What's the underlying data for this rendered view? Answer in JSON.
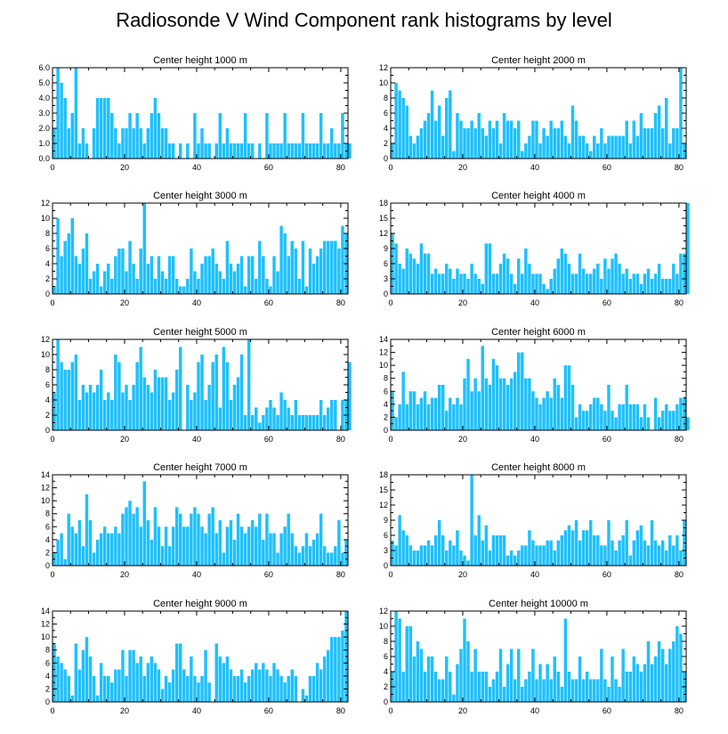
{
  "title": "Radiosonde V Wind Component rank histograms by level",
  "colors": {
    "bar": "#1ec0ff",
    "axis": "#000000",
    "background": "#ffffff"
  },
  "chart_data": [
    {
      "type": "bar",
      "title": "Center height 1000 m",
      "xlim": [
        0,
        82
      ],
      "ylim": [
        0,
        6
      ],
      "xticks": [
        0,
        20,
        40,
        60,
        80
      ],
      "yticks": [
        0,
        1,
        2,
        3,
        4,
        5,
        6
      ],
      "ytick_labels": [
        "0.0",
        "1.0",
        "2.0",
        "3.0",
        "4.0",
        "5.0",
        "6.0"
      ],
      "values": [
        2,
        6,
        5,
        4,
        2,
        3,
        6,
        1,
        2,
        1,
        0,
        2,
        4,
        4,
        4,
        4,
        3,
        2,
        1,
        2,
        2,
        3,
        2,
        3,
        2,
        1,
        2,
        3,
        4,
        3,
        2,
        2,
        1,
        1,
        0,
        1,
        0,
        1,
        0,
        3,
        1,
        2,
        1,
        1,
        0,
        1,
        3,
        1,
        2,
        1,
        1,
        1,
        1,
        3,
        1,
        1,
        0,
        1,
        0,
        3,
        1,
        1,
        1,
        1,
        3,
        1,
        1,
        1,
        1,
        3,
        1,
        1,
        1,
        1,
        3,
        1,
        1,
        2,
        1,
        1,
        3,
        1,
        1
      ]
    },
    {
      "type": "bar",
      "title": "Center height 2000 m",
      "xlim": [
        0,
        82
      ],
      "ylim": [
        0,
        12
      ],
      "xticks": [
        0,
        20,
        40,
        60,
        80
      ],
      "yticks": [
        0,
        2,
        4,
        6,
        8,
        10,
        12
      ],
      "ytick_labels": [
        "0",
        "2",
        "4",
        "6",
        "8",
        "10",
        "12"
      ],
      "values": [
        2,
        10,
        9,
        8,
        7,
        3,
        2,
        3,
        4,
        5,
        6,
        9,
        5,
        7,
        3,
        8,
        9,
        1,
        6,
        5,
        4,
        4,
        5,
        4,
        6,
        4,
        3,
        5,
        4,
        5,
        2,
        6,
        5,
        5,
        4,
        5,
        1,
        2,
        3,
        5,
        5,
        2,
        4,
        3,
        5,
        4,
        4,
        5,
        3,
        2,
        7,
        5,
        3,
        3,
        2,
        1,
        3,
        2,
        4,
        2,
        3,
        3,
        3,
        3,
        3,
        5,
        2,
        5,
        3,
        6,
        4,
        4,
        4,
        6,
        7,
        4,
        8,
        2,
        4,
        4,
        12,
        2
      ]
    },
    {
      "type": "bar",
      "title": "Center height 3000 m",
      "xlim": [
        0,
        82
      ],
      "ylim": [
        0,
        12
      ],
      "xticks": [
        0,
        20,
        40,
        60,
        80
      ],
      "yticks": [
        0,
        2,
        4,
        6,
        8,
        10,
        12
      ],
      "ytick_labels": [
        "0",
        "2",
        "4",
        "6",
        "8",
        "10",
        "12"
      ],
      "values": [
        1,
        10,
        5,
        7,
        8,
        10,
        5,
        4,
        6,
        8,
        2,
        3,
        4,
        1,
        3,
        4,
        2,
        5,
        6,
        6,
        3,
        7,
        4,
        2,
        6,
        12,
        4,
        5,
        2,
        5,
        3,
        2,
        5,
        5,
        2,
        1,
        1,
        2,
        6,
        3,
        2,
        4,
        5,
        5,
        6,
        4,
        3,
        2,
        7,
        4,
        3,
        4,
        5,
        1,
        5,
        5,
        2,
        7,
        5,
        2,
        1,
        5,
        3,
        9,
        8,
        5,
        7,
        6,
        2,
        7,
        1,
        6,
        4,
        5,
        6,
        7,
        7,
        7,
        7,
        6,
        9,
        8
      ]
    },
    {
      "type": "bar",
      "title": "Center height 4000 m",
      "xlim": [
        0,
        82
      ],
      "ylim": [
        0,
        18
      ],
      "xticks": [
        0,
        20,
        40,
        60,
        80
      ],
      "yticks": [
        0,
        3,
        6,
        9,
        12,
        15,
        18
      ],
      "ytick_labels": [
        "0",
        "3",
        "6",
        "9",
        "12",
        "15",
        "18"
      ],
      "values": [
        12,
        10,
        6,
        5,
        9,
        8,
        7,
        6,
        10,
        8,
        8,
        4,
        5,
        4,
        4,
        6,
        5,
        3,
        5,
        4,
        4,
        3,
        6,
        4,
        3,
        2,
        10,
        10,
        4,
        4,
        6,
        8,
        7,
        4,
        2,
        7,
        4,
        9,
        6,
        4,
        4,
        4,
        2,
        1,
        3,
        5,
        7,
        9,
        8,
        6,
        4,
        4,
        8,
        5,
        4,
        4,
        5,
        6,
        3,
        7,
        5,
        7,
        8,
        6,
        4,
        5,
        3,
        4,
        4,
        2,
        4,
        5,
        3,
        4,
        6,
        3,
        3,
        3,
        6,
        4,
        8,
        8,
        18
      ]
    },
    {
      "type": "bar",
      "title": "Center height 5000 m",
      "xlim": [
        0,
        82
      ],
      "ylim": [
        0,
        12
      ],
      "xticks": [
        0,
        20,
        40,
        60,
        80
      ],
      "yticks": [
        0,
        2,
        4,
        6,
        8,
        10,
        12
      ],
      "ytick_labels": [
        "0",
        "2",
        "4",
        "6",
        "8",
        "10",
        "12"
      ],
      "values": [
        5,
        12,
        9,
        8,
        8,
        9,
        10,
        4,
        6,
        5,
        6,
        5,
        6,
        8,
        4,
        5,
        4,
        10,
        9,
        5,
        6,
        4,
        6,
        9,
        11,
        7,
        6,
        5,
        8,
        7,
        7,
        7,
        4,
        5,
        8,
        11,
        0,
        6,
        4,
        5,
        9,
        10,
        4,
        6,
        9,
        10,
        3,
        11,
        9,
        4,
        6,
        7,
        10,
        2,
        12,
        2,
        3,
        1,
        2,
        3,
        4,
        3,
        2,
        5,
        4,
        3,
        2,
        4,
        2,
        2,
        2,
        2,
        2,
        2,
        4,
        2,
        3,
        4,
        4,
        0,
        4,
        4,
        9
      ]
    },
    {
      "type": "bar",
      "title": "Center height 6000 m",
      "xlim": [
        0,
        82
      ],
      "ylim": [
        0,
        14
      ],
      "xticks": [
        0,
        20,
        40,
        60,
        80
      ],
      "yticks": [
        0,
        2,
        4,
        6,
        8,
        10,
        12,
        14
      ],
      "ytick_labels": [
        "0",
        "2",
        "4",
        "6",
        "8",
        "10",
        "12",
        "14"
      ],
      "values": [
        6,
        2,
        4,
        9,
        4,
        6,
        6,
        4,
        5,
        6,
        4,
        5,
        5,
        7,
        7,
        3,
        5,
        4,
        5,
        4,
        8,
        11,
        6,
        8,
        6,
        13,
        8,
        7,
        11,
        10,
        8,
        8,
        7,
        8,
        9,
        12,
        12,
        8,
        8,
        6,
        5,
        4,
        5,
        6,
        5,
        8,
        7,
        5,
        10,
        10,
        7,
        2,
        4,
        3,
        3,
        4,
        5,
        5,
        4,
        3,
        7,
        3,
        2,
        4,
        4,
        7,
        4,
        4,
        4,
        2,
        4,
        2,
        0,
        5,
        2,
        3,
        4,
        3,
        3,
        4,
        5,
        5,
        2
      ]
    },
    {
      "type": "bar",
      "title": "Center height 7000 m",
      "xlim": [
        0,
        82
      ],
      "ylim": [
        0,
        14
      ],
      "xticks": [
        0,
        20,
        40,
        60,
        80
      ],
      "yticks": [
        0,
        2,
        4,
        6,
        8,
        10,
        12,
        14
      ],
      "ytick_labels": [
        "0",
        "2",
        "4",
        "6",
        "8",
        "10",
        "12",
        "14"
      ],
      "values": [
        2,
        4,
        5,
        1,
        8,
        6,
        5,
        7,
        3,
        11,
        7,
        2,
        4,
        5,
        6,
        5,
        5,
        6,
        5,
        8,
        9,
        10,
        8,
        9,
        6,
        13,
        7,
        4,
        9,
        6,
        3,
        6,
        3,
        6,
        9,
        8,
        6,
        6,
        8,
        9,
        8,
        6,
        5,
        8,
        9,
        5,
        7,
        2,
        6,
        7,
        4,
        8,
        6,
        5,
        6,
        7,
        6,
        8,
        4,
        8,
        5,
        5,
        2,
        5,
        6,
        8,
        5,
        3,
        2,
        3,
        5,
        3,
        4,
        5,
        8,
        3,
        2,
        2,
        3,
        7,
        2,
        4
      ]
    },
    {
      "type": "bar",
      "title": "Center height 8000 m",
      "xlim": [
        0,
        82
      ],
      "ylim": [
        0,
        18
      ],
      "xticks": [
        0,
        20,
        40,
        60,
        80
      ],
      "yticks": [
        0,
        3,
        6,
        9,
        12,
        15,
        18
      ],
      "ytick_labels": [
        "0",
        "3",
        "6",
        "9",
        "12",
        "15",
        "18"
      ],
      "values": [
        5,
        4,
        10,
        7,
        6,
        4,
        3,
        3,
        4,
        4,
        5,
        4,
        6,
        9,
        6,
        3,
        5,
        4,
        7,
        3,
        2,
        1,
        18,
        6,
        10,
        5,
        8,
        3,
        6,
        6,
        6,
        6,
        2,
        3,
        2,
        3,
        4,
        4,
        7,
        5,
        4,
        4,
        4,
        5,
        5,
        3,
        5,
        6,
        7,
        8,
        7,
        9,
        5,
        7,
        7,
        9,
        6,
        6,
        4,
        4,
        9,
        5,
        3,
        5,
        6,
        9,
        2,
        5,
        7,
        8,
        5,
        4,
        9,
        5,
        4,
        5,
        3,
        6,
        4,
        6,
        3,
        9
      ]
    },
    {
      "type": "bar",
      "title": "Center height 9000 m",
      "xlim": [
        0,
        82
      ],
      "ylim": [
        0,
        14
      ],
      "xticks": [
        0,
        20,
        40,
        60,
        80
      ],
      "yticks": [
        0,
        2,
        4,
        6,
        8,
        10,
        12,
        14
      ],
      "ytick_labels": [
        "0",
        "2",
        "4",
        "6",
        "8",
        "10",
        "12",
        "14"
      ],
      "values": [
        9,
        7,
        6,
        5,
        4,
        1,
        9,
        5,
        8,
        10,
        7,
        4,
        1,
        6,
        4,
        4,
        3,
        5,
        5,
        8,
        4,
        8,
        8,
        6,
        7,
        4,
        6,
        7,
        6,
        5,
        2,
        4,
        3,
        5,
        9,
        9,
        5,
        4,
        7,
        4,
        3,
        4,
        8,
        3,
        0,
        9,
        7,
        6,
        7,
        5,
        4,
        4,
        5,
        3,
        4,
        5,
        6,
        5,
        6,
        5,
        4,
        6,
        5,
        4,
        3,
        4,
        5,
        4,
        0,
        2,
        1,
        4,
        4,
        6,
        5,
        7,
        8,
        10,
        10,
        10,
        11,
        14
      ]
    },
    {
      "type": "bar",
      "title": "Center height 10000 m",
      "xlim": [
        0,
        82
      ],
      "ylim": [
        0,
        12
      ],
      "xticks": [
        0,
        20,
        40,
        60,
        80
      ],
      "yticks": [
        0,
        2,
        4,
        6,
        8,
        10,
        12
      ],
      "ytick_labels": [
        "0",
        "2",
        "4",
        "6",
        "8",
        "10",
        "12"
      ],
      "values": [
        4,
        12,
        11,
        4,
        10,
        10,
        6,
        8,
        7,
        4,
        6,
        6,
        4,
        3,
        3,
        6,
        4,
        1,
        5,
        7,
        11,
        8,
        4,
        7,
        4,
        4,
        4,
        2,
        3,
        4,
        7,
        2,
        5,
        7,
        3,
        7,
        2,
        3,
        4,
        7,
        3,
        5,
        3,
        5,
        3,
        6,
        4,
        2,
        11,
        4,
        3,
        3,
        6,
        3,
        4,
        3,
        3,
        3,
        7,
        3,
        2,
        6,
        3,
        2,
        7,
        4,
        4,
        6,
        5,
        4,
        5,
        8,
        5,
        6,
        8,
        7,
        5,
        7,
        8,
        10,
        9,
        4
      ]
    }
  ]
}
